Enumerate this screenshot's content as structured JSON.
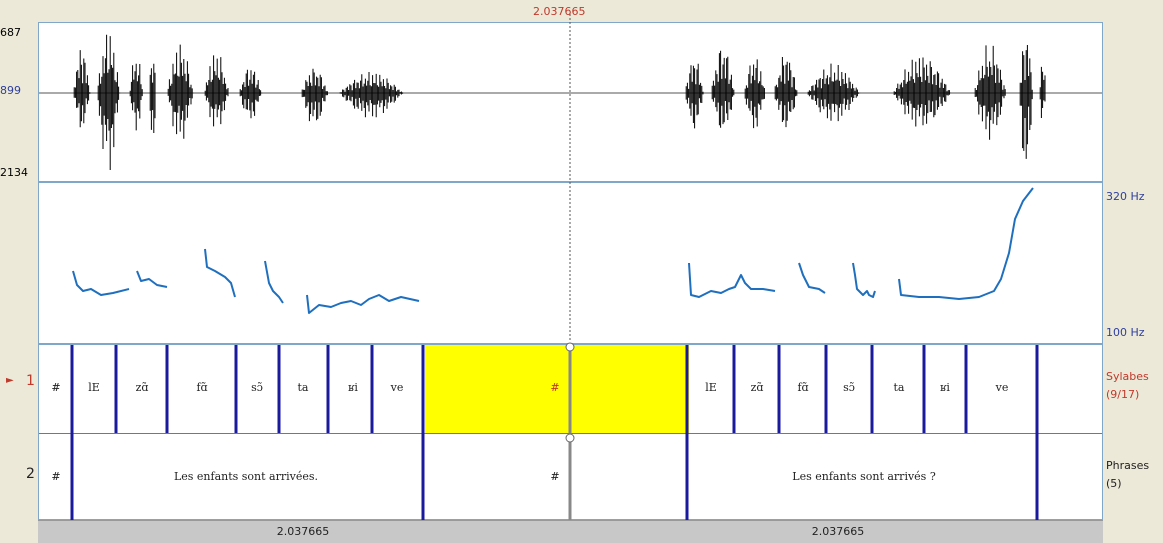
{
  "cursor": {
    "time": "2.037665"
  },
  "waveform": {
    "top_label": "687",
    "middle_label": "899",
    "bottom_label": "2134"
  },
  "pitch": {
    "top_label": "320 Hz",
    "bottom_label": "100 Hz"
  },
  "tiers": [
    {
      "number": "1",
      "marker": "►",
      "name": "Sylabes",
      "count": "(9/17)",
      "cells": [
        "#",
        "lE",
        "zɑ̃",
        "fɑ̃",
        "sɔ̃",
        "ta",
        "ʁi",
        "ve",
        "#",
        "lE",
        "zɑ̃",
        "fɑ̃",
        "sɔ̃",
        "ta",
        "ʁi",
        "ve"
      ]
    },
    {
      "number": "2",
      "name": "Phrases",
      "count": "(5)",
      "cells": [
        "#",
        "Les enfants sont arrivées.",
        "#",
        "Les enfants sont arrivés ?"
      ]
    }
  ],
  "bottom_times": [
    "2.037665",
    "2.037665"
  ],
  "colors": {
    "selection": "#ffff00",
    "boundary": "#1a1a9c",
    "pitch": "#1f6fbf",
    "border": "#7fa7c9"
  }
}
